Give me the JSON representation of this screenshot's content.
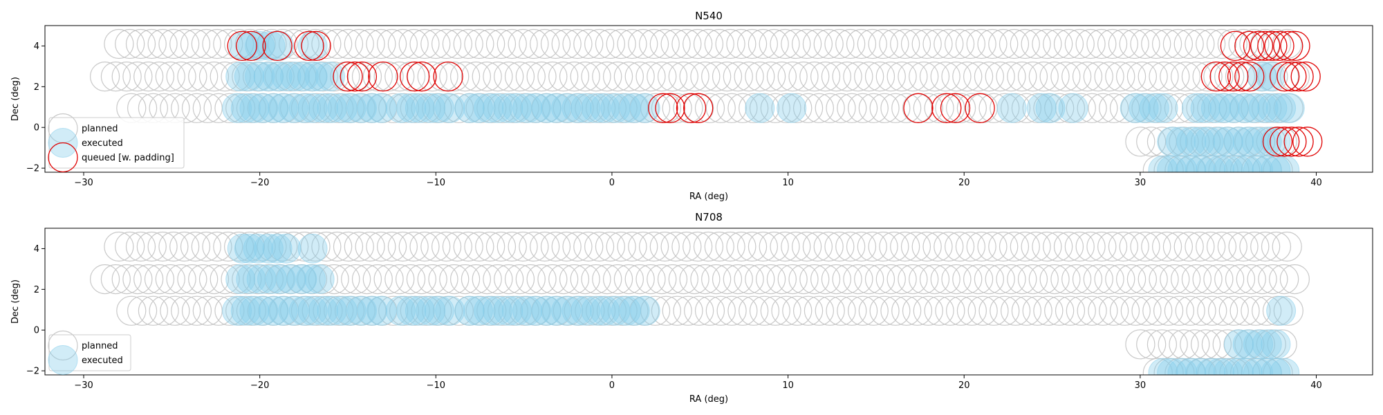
{
  "colors": {
    "planned": "#c8c8c8",
    "executed_fill": "#87ceeb",
    "executed_edge": "#87ceeb",
    "queued": "#e00000",
    "axis": "#000000",
    "background": "#ffffff"
  },
  "chart_data": [
    {
      "type": "scatter",
      "title": "N540",
      "xlabel": "RA (deg)",
      "ylabel": "Dec (deg)",
      "xlim": [
        -32.2,
        43.2
      ],
      "ylim": [
        -2.2,
        5.0
      ],
      "xticks": [
        -30,
        -20,
        -10,
        0,
        10,
        20,
        30,
        40
      ],
      "yticks": [
        -2,
        0,
        2,
        4
      ],
      "xtick_labels": [
        "−30",
        "−20",
        "−10",
        "0",
        "10",
        "20",
        "30",
        "40"
      ],
      "ytick_labels": [
        "−2",
        "0",
        "2",
        "4"
      ],
      "grid": false,
      "legend_position": "lower-left",
      "legend": [
        {
          "key": "planned",
          "label": "planned"
        },
        {
          "key": "executed",
          "label": "executed"
        },
        {
          "key": "queued",
          "label": "queued [w. padding]"
        }
      ],
      "series": {
        "planned": [
          {
            "dec": 4.1,
            "ra_start": -28.0,
            "ra_end": 38.4,
            "step": 0.62
          },
          {
            "dec": 2.5,
            "ra_start": -28.8,
            "ra_end": 39.0,
            "step": 0.62
          },
          {
            "dec": 0.95,
            "ra_start": -27.3,
            "ra_end": 38.6,
            "step": 0.62
          },
          {
            "dec": -0.7,
            "ra_start": 30.0,
            "ra_end": 38.6,
            "step": 0.62
          },
          {
            "dec": -2.1,
            "ra_start": 31.0,
            "ra_end": 38.4,
            "step": 0.62
          }
        ],
        "executed": [
          {
            "dec": 4.0,
            "ra": [
              -20.9,
              -20.4,
              -20.0,
              -19.4,
              -18.9,
              -17.0
            ]
          },
          {
            "dec": 2.5,
            "ra": [
              -21.1,
              -20.6,
              -20.0,
              -19.5,
              -19.0,
              -18.5,
              -18.0,
              -17.5,
              -17.0,
              -16.6,
              -16.0
            ]
          },
          {
            "dec": 0.95,
            "ra": [
              -21.3,
              -20.8,
              -20.3,
              -19.8,
              -19.2,
              -18.7,
              -18.1,
              -17.5,
              -17.0,
              -16.4,
              -15.9,
              -15.3,
              -14.8,
              -14.2,
              -13.6,
              -13.1,
              -12.0,
              -11.4,
              -10.9,
              -10.3,
              -9.8,
              -9.2,
              -8.1,
              -7.6,
              -7.0,
              -6.5,
              -5.9,
              -5.4,
              -4.8,
              -4.3,
              -3.7,
              -3.2,
              -2.6,
              -2.0,
              -1.5,
              -0.9,
              -0.4,
              0.2,
              0.8,
              1.3,
              1.9,
              8.4,
              10.2,
              22.7,
              24.4,
              24.9,
              26.2,
              29.7,
              30.2,
              30.8,
              31.3,
              33.2,
              33.7,
              34.3,
              34.8,
              35.3,
              35.9,
              36.4,
              37.0,
              37.5,
              38.0,
              38.5
            ]
          },
          {
            "dec": -0.7,
            "ra": [
              31.8,
              32.3,
              32.9,
              33.4,
              33.9,
              34.5,
              35.0,
              35.6,
              36.1,
              36.6,
              37.2,
              37.7
            ]
          },
          {
            "dec": -2.1,
            "ra": [
              31.3,
              31.8,
              32.4,
              32.9,
              33.4,
              34.0,
              34.5,
              35.0,
              35.6,
              36.1,
              36.7,
              37.2,
              37.7,
              38.2
            ]
          },
          {
            "dec": 2.5,
            "ra": [
              36.9,
              37.4
            ]
          }
        ],
        "queued": [
          {
            "dec": 4.0,
            "ra": [
              -21.0,
              -20.5,
              -19.0,
              -17.2,
              -16.8,
              35.4,
              36.2,
              36.7,
              37.1,
              37.5,
              37.9,
              38.4,
              38.8
            ]
          },
          {
            "dec": 2.5,
            "ra": [
              -15.0,
              -14.6,
              -14.2,
              -13.0,
              -11.2,
              -10.8,
              -9.3,
              34.3,
              34.8,
              35.3,
              35.8,
              36.2,
              38.2,
              38.6,
              39.0,
              39.4
            ]
          },
          {
            "dec": 0.95,
            "ra": [
              2.9,
              3.3,
              4.5,
              4.9,
              17.4,
              19.0,
              19.5,
              20.9
            ]
          },
          {
            "dec": -0.7,
            "ra": [
              37.8,
              38.2,
              38.6,
              39.0,
              39.5
            ]
          }
        ]
      }
    },
    {
      "type": "scatter",
      "title": "N708",
      "xlabel": "RA (deg)",
      "ylabel": "Dec (deg)",
      "xlim": [
        -32.2,
        43.2
      ],
      "ylim": [
        -2.2,
        5.0
      ],
      "xticks": [
        -30,
        -20,
        -10,
        0,
        10,
        20,
        30,
        40
      ],
      "yticks": [
        -2,
        0,
        2,
        4
      ],
      "xtick_labels": [
        "−30",
        "−20",
        "−10",
        "0",
        "10",
        "20",
        "30",
        "40"
      ],
      "ytick_labels": [
        "−2",
        "0",
        "2",
        "4"
      ],
      "grid": false,
      "legend_position": "lower-left",
      "legend": [
        {
          "key": "planned",
          "label": "planned"
        },
        {
          "key": "executed",
          "label": "executed"
        }
      ],
      "series": {
        "planned": [
          {
            "dec": 4.1,
            "ra_start": -28.0,
            "ra_end": 38.4,
            "step": 0.62
          },
          {
            "dec": 2.5,
            "ra_start": -28.8,
            "ra_end": 39.0,
            "step": 0.62
          },
          {
            "dec": 0.95,
            "ra_start": -27.3,
            "ra_end": 38.6,
            "step": 0.62
          },
          {
            "dec": -0.7,
            "ra_start": 30.0,
            "ra_end": 38.6,
            "step": 0.62
          },
          {
            "dec": -2.1,
            "ra_start": 31.0,
            "ra_end": 38.4,
            "step": 0.62
          }
        ],
        "executed": [
          {
            "dec": 4.0,
            "ra": [
              -21.0,
              -20.6,
              -20.1,
              -19.5,
              -19.0,
              -18.5,
              -17.0
            ]
          },
          {
            "dec": 2.5,
            "ra": [
              -21.1,
              -20.5,
              -19.9,
              -19.3,
              -18.8,
              -18.2,
              -17.6,
              -17.1,
              -16.6
            ]
          },
          {
            "dec": 0.95,
            "ra": [
              -21.3,
              -20.8,
              -20.3,
              -19.8,
              -19.2,
              -18.7,
              -18.1,
              -17.5,
              -17.0,
              -16.4,
              -15.9,
              -15.3,
              -14.8,
              -14.2,
              -13.6,
              -13.1,
              -12.0,
              -11.4,
              -10.9,
              -10.3,
              -9.8,
              -9.2,
              -8.1,
              -7.6,
              -7.0,
              -6.5,
              -5.9,
              -5.4,
              -4.8,
              -4.3,
              -3.7,
              -3.2,
              -2.6,
              -2.0,
              -1.5,
              -0.9,
              -0.4,
              0.2,
              0.8,
              1.3,
              1.9,
              38.0
            ]
          },
          {
            "dec": -0.7,
            "ra": [
              35.6,
              36.1,
              36.7,
              37.2,
              37.7
            ]
          },
          {
            "dec": -2.1,
            "ra": [
              31.3,
              31.8,
              32.4,
              32.9,
              33.4,
              34.0,
              34.5,
              35.0,
              35.6,
              36.1,
              36.7,
              37.2,
              37.7,
              38.2
            ]
          }
        ]
      }
    }
  ]
}
